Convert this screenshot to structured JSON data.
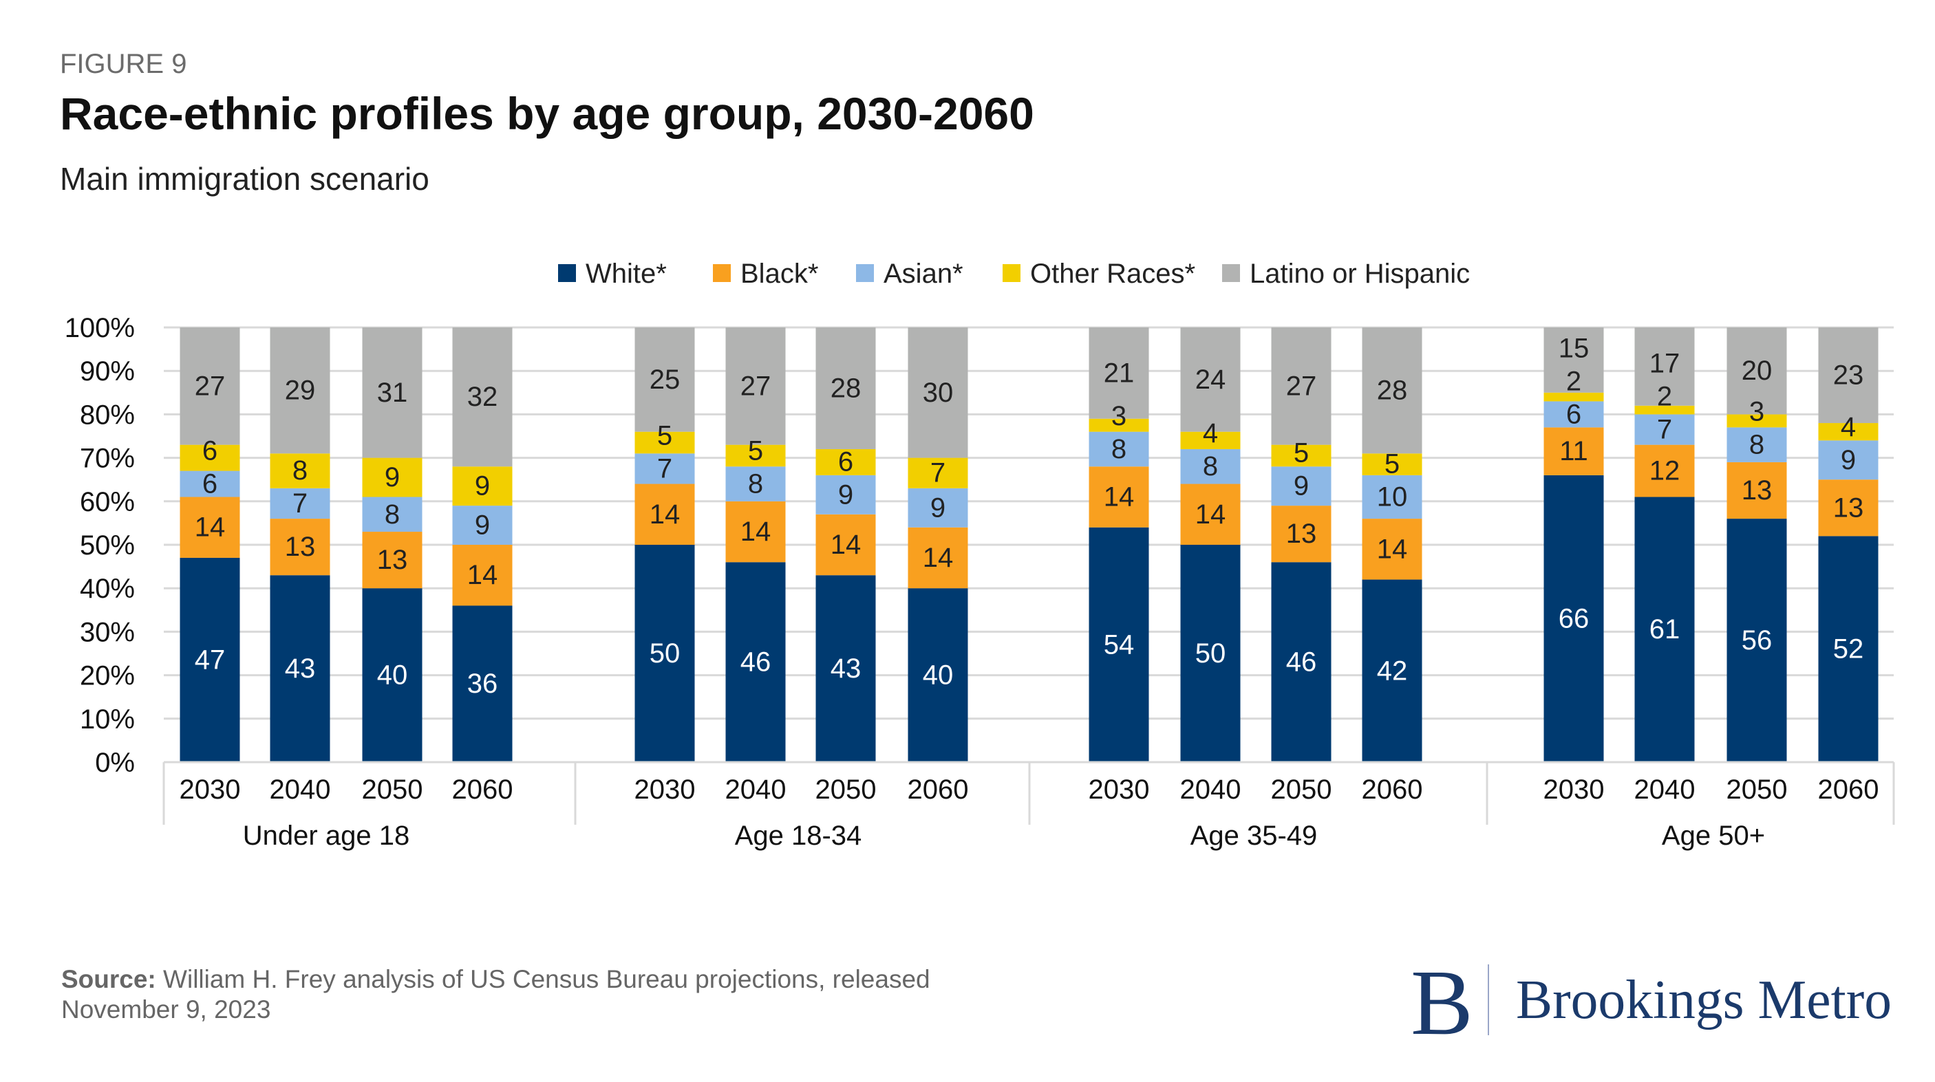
{
  "header": {
    "figure_label": "FIGURE 9",
    "title": "Race-ethnic profiles by age group, 2030-2060",
    "subtitle": "Main immigration scenario"
  },
  "chart_data": {
    "type": "bar",
    "stacked": true,
    "percent": true,
    "ylim": [
      0,
      100
    ],
    "yticks": [
      "0%",
      "10%",
      "20%",
      "30%",
      "40%",
      "50%",
      "60%",
      "70%",
      "80%",
      "90%",
      "100%"
    ],
    "grid": true,
    "legend_position": "top",
    "groups": [
      "Under age 18",
      "Age 18-34",
      "Age 35-49",
      "Age 50+"
    ],
    "years": [
      "2030",
      "2040",
      "2050",
      "2060"
    ],
    "series": [
      {
        "name": "White*",
        "color": "#003A70",
        "label_color": "#ffffff",
        "values": [
          47,
          43,
          40,
          36,
          50,
          46,
          43,
          40,
          54,
          50,
          46,
          42,
          66,
          61,
          56,
          52
        ]
      },
      {
        "name": "Black*",
        "color": "#F9A01F",
        "label_color": "#222222",
        "values": [
          14,
          13,
          13,
          14,
          14,
          14,
          14,
          14,
          14,
          14,
          13,
          14,
          11,
          12,
          13,
          13
        ]
      },
      {
        "name": "Asian*",
        "color": "#8DB8E6",
        "label_color": "#222222",
        "values": [
          6,
          7,
          8,
          9,
          7,
          8,
          9,
          9,
          8,
          8,
          9,
          10,
          6,
          7,
          8,
          9
        ]
      },
      {
        "name": "Other Races*",
        "color": "#F2CF00",
        "label_color": "#222222",
        "values": [
          6,
          8,
          9,
          9,
          5,
          5,
          6,
          7,
          3,
          4,
          5,
          5,
          2,
          2,
          3,
          4
        ]
      },
      {
        "name": "Latino or Hispanic",
        "color": "#B2B3B2",
        "label_color": "#222222",
        "values": [
          27,
          29,
          31,
          32,
          25,
          27,
          28,
          30,
          21,
          24,
          27,
          28,
          15,
          17,
          20,
          23
        ]
      }
    ]
  },
  "footer": {
    "source_label": "Source:",
    "source_line1": " William H. Frey analysis of US Census Bureau projections, released",
    "source_line2": "November 9, 2023",
    "logo_text": "Brookings Metro",
    "logo_mark": "B"
  }
}
